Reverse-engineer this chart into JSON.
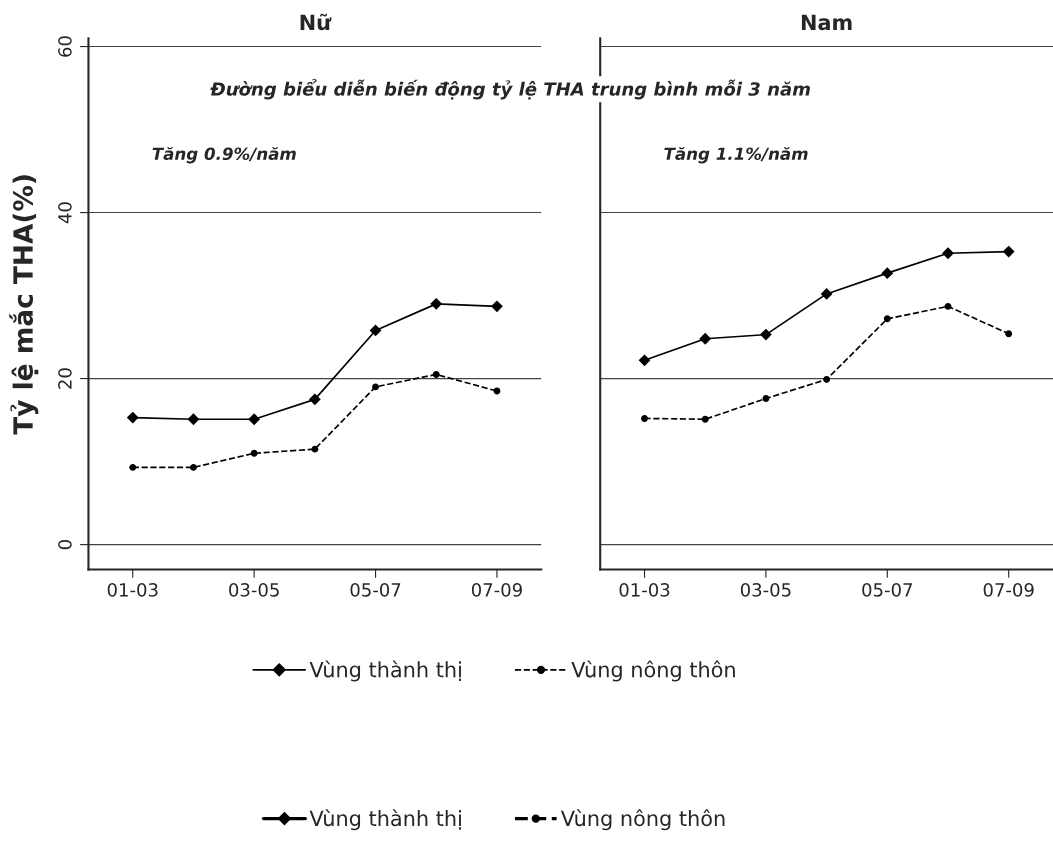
{
  "chart_data": [
    {
      "type": "line",
      "title": "Nữ",
      "subtitle": "Đường biểu diễn biến động tỷ lệ THA trung bình mỗi 3 năm",
      "ylabel": "Tỷ lệ mắc THA(%)",
      "annotations": [
        "Tăng 0.9%/năm"
      ],
      "categories": [
        "01-03",
        null,
        "03-05",
        null,
        "05-07",
        null,
        "07-09"
      ],
      "series": [
        {
          "name": "Vùng thành thị",
          "color": "#000000",
          "marker": "diamond",
          "line_style": "solid",
          "values": [
            15.3,
            15.1,
            15.1,
            17.5,
            25.8,
            29.0,
            28.7
          ]
        },
        {
          "name": "Vùng nông thôn",
          "color": "#000000",
          "marker": "circle",
          "line_style": "dashed",
          "values": [
            9.3,
            9.3,
            11.0,
            11.5,
            19.0,
            20.5,
            18.5
          ]
        }
      ],
      "ylim": [
        -3,
        61
      ],
      "yticks": [
        0,
        20,
        40,
        60
      ],
      "grid": "y",
      "legend": "bottom"
    },
    {
      "type": "line",
      "title": "Nam",
      "annotations": [
        "Tăng 1.1%/năm"
      ],
      "categories": [
        "01-03",
        null,
        "03-05",
        null,
        "05-07",
        null,
        "07-09"
      ],
      "series": [
        {
          "name": "Vùng thành thị",
          "color": "#000000",
          "marker": "diamond",
          "line_style": "solid",
          "values": [
            22.2,
            24.8,
            25.3,
            30.2,
            32.7,
            35.1,
            35.3
          ]
        },
        {
          "name": "Vùng nông thôn",
          "color": "#000000",
          "marker": "circle",
          "line_style": "dashed",
          "values": [
            15.2,
            15.1,
            17.6,
            19.9,
            27.2,
            28.7,
            25.4
          ]
        }
      ],
      "ylim": [
        -3,
        61
      ],
      "yticks": [
        0,
        20,
        40,
        60
      ],
      "grid": "y",
      "tick_labels": "x",
      "legend": "bottom"
    }
  ]
}
